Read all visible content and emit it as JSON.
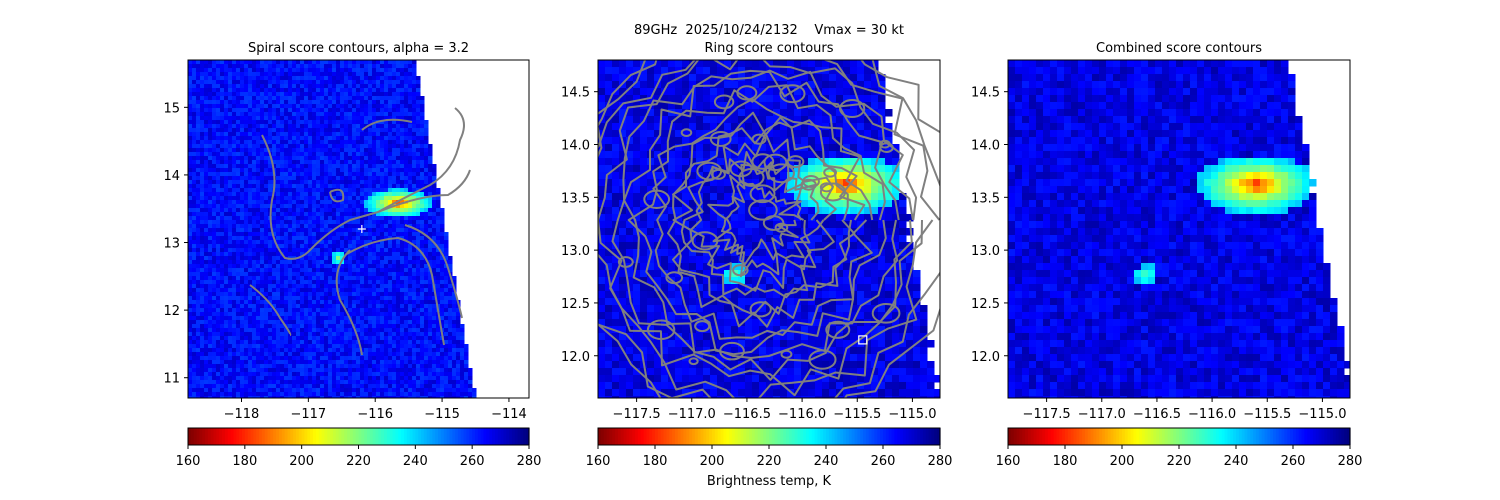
{
  "suptitle": "89GHz  2025/10/24/2132    Vmax = 30 kt",
  "colorbar_label": "Brightness temp, K",
  "colormap": "jet",
  "chart_data": [
    {
      "type": "heatmap",
      "title": "Spiral score contours, alpha =  3.2",
      "xlim": [
        -118.8,
        -113.7
      ],
      "ylim": [
        10.7,
        15.7
      ],
      "xticks": [
        -118,
        -117,
        -116,
        -115,
        -114
      ],
      "xtick_labels": [
        "−118",
        "−117",
        "−116",
        "−115",
        "−114"
      ],
      "yticks": [
        11,
        12,
        13,
        14,
        15
      ],
      "ytick_labels": [
        "11",
        "12",
        "13",
        "14",
        "15"
      ],
      "colorbar": {
        "min": 160,
        "max": 280,
        "ticks": [
          160,
          180,
          200,
          220,
          240,
          260,
          280
        ],
        "tick_labels": [
          "160",
          "180",
          "200",
          "220",
          "240",
          "260",
          "280"
        ]
      },
      "swath_edge": [
        [
          -115.4,
          15.7
        ],
        [
          -114.5,
          10.7
        ]
      ],
      "marker": {
        "shape": "plus",
        "lon": -116.2,
        "lat": 13.2
      },
      "features": [
        {
          "lon": -115.65,
          "lat": 13.58,
          "tb": 165
        },
        {
          "lon": -116.55,
          "lat": 12.77,
          "tb": 215
        }
      ]
    },
    {
      "type": "heatmap",
      "title": "Ring score contours",
      "xlim": [
        -117.85,
        -114.75
      ],
      "ylim": [
        11.6,
        14.8
      ],
      "xticks": [
        -117.5,
        -117.0,
        -116.5,
        -116.0,
        -115.5,
        -115.0
      ],
      "xtick_labels": [
        "−117.5",
        "−117.0",
        "−116.5",
        "−116.0",
        "−115.5",
        "−115.0"
      ],
      "yticks": [
        12.0,
        12.5,
        13.0,
        13.5,
        14.0,
        14.5
      ],
      "ytick_labels": [
        "12.0",
        "12.5",
        "13.0",
        "13.5",
        "14.0",
        "14.5"
      ],
      "colorbar": {
        "min": 160,
        "max": 280,
        "ticks": [
          160,
          180,
          200,
          220,
          240,
          260,
          280
        ],
        "tick_labels": [
          "160",
          "180",
          "200",
          "220",
          "240",
          "260",
          "280"
        ]
      },
      "marker": {
        "shape": "square",
        "lon": -115.45,
        "lat": 12.15
      },
      "features": [
        {
          "lon": -115.6,
          "lat": 13.62,
          "tb": 165
        },
        {
          "lon": -116.6,
          "lat": 12.77,
          "tb": 215
        }
      ]
    },
    {
      "type": "heatmap",
      "title": "Combined score contours",
      "xlim": [
        -117.85,
        -114.75
      ],
      "ylim": [
        11.6,
        14.8
      ],
      "xticks": [
        -117.5,
        -117.0,
        -116.5,
        -116.0,
        -115.5,
        -115.0
      ],
      "xtick_labels": [
        "−117.5",
        "−117.0",
        "−116.5",
        "−116.0",
        "−115.5",
        "−115.0"
      ],
      "yticks": [
        12.0,
        12.5,
        13.0,
        13.5,
        14.0,
        14.5
      ],
      "ytick_labels": [
        "12.0",
        "12.5",
        "13.0",
        "13.5",
        "14.0",
        "14.5"
      ],
      "colorbar": {
        "min": 160,
        "max": 280,
        "ticks": [
          160,
          180,
          200,
          220,
          240,
          260,
          280
        ],
        "tick_labels": [
          "160",
          "180",
          "200",
          "220",
          "240",
          "260",
          "280"
        ]
      },
      "features": [
        {
          "lon": -115.6,
          "lat": 13.62,
          "tb": 165
        },
        {
          "lon": -116.6,
          "lat": 12.77,
          "tb": 215
        }
      ]
    }
  ]
}
